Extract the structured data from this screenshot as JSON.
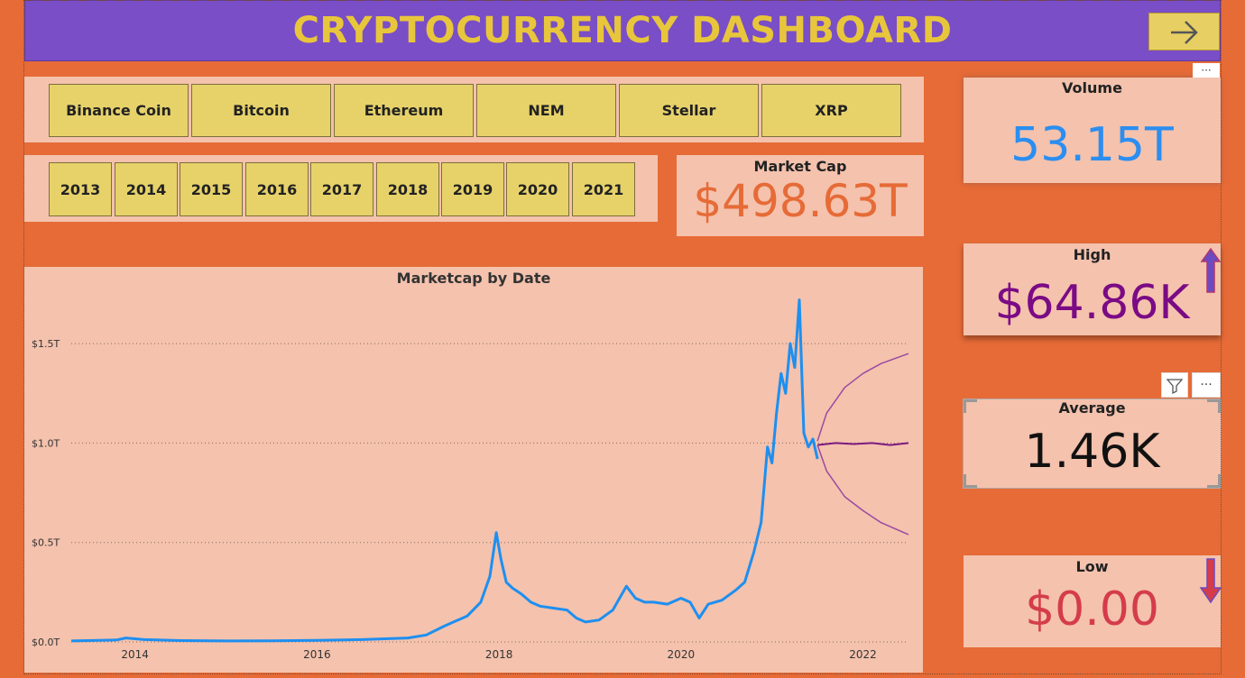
{
  "header": {
    "title": "CRYPTOCURRENCY DASHBOARD",
    "next_icon": "arrow-right-icon"
  },
  "coins": [
    "Binance Coin",
    "Bitcoin",
    "Ethereum",
    "NEM",
    "Stellar",
    "XRP"
  ],
  "years": [
    "2013",
    "2014",
    "2015",
    "2016",
    "2017",
    "2018",
    "2019",
    "2020",
    "2021"
  ],
  "cards": {
    "market_cap": {
      "label": "Market Cap",
      "value": "$498.63T",
      "color": "#e66b37"
    },
    "volume": {
      "label": "Volume",
      "value": "53.15T",
      "color": "#2b8ef0"
    },
    "high": {
      "label": "High",
      "value": "$64.86K",
      "color": "#7b0a85",
      "icon": "arrow-up-icon"
    },
    "average": {
      "label": "Average",
      "value": "1.46K",
      "color": "#111111"
    },
    "low": {
      "label": "Low",
      "value": "$0.00",
      "color": "#d43c4c",
      "icon": "arrow-down-icon"
    }
  },
  "visual_toolbar": {
    "filter_icon": "filter-icon",
    "more_icon": "more-options-icon",
    "more_label": "···"
  },
  "chart_data": {
    "type": "line",
    "title": "Marketcap by Date",
    "xlabel": "",
    "ylabel": "",
    "x_ticks": [
      "2014",
      "2016",
      "2018",
      "2020",
      "2022"
    ],
    "y_ticks": [
      "$0.0T",
      "$0.5T",
      "$1.0T",
      "$1.5T"
    ],
    "ylim": [
      0,
      1.75
    ],
    "xlim": [
      2013.3,
      2022.5
    ],
    "grid": "horizontal dotted",
    "series": [
      {
        "color": "#1e8ff0",
        "x": [
          2013.3,
          2013.8,
          2013.9,
          2014.1,
          2014.5,
          2015.0,
          2015.5,
          2016.0,
          2016.5,
          2017.0,
          2017.2,
          2017.4,
          2017.5,
          2017.65,
          2017.8,
          2017.9,
          2017.97,
          2018.02,
          2018.08,
          2018.15,
          2018.25,
          2018.35,
          2018.45,
          2018.6,
          2018.75,
          2018.85,
          2018.95,
          2019.1,
          2019.25,
          2019.4,
          2019.5,
          2019.6,
          2019.7,
          2019.85,
          2020.0,
          2020.1,
          2020.2,
          2020.3,
          2020.45,
          2020.6,
          2020.7,
          2020.8,
          2020.88,
          2020.95,
          2021.0,
          2021.05,
          2021.1,
          2021.15,
          2021.2,
          2021.25,
          2021.3,
          2021.35,
          2021.4,
          2021.45,
          2021.5
        ],
        "values": [
          0.005,
          0.01,
          0.02,
          0.012,
          0.007,
          0.005,
          0.006,
          0.008,
          0.012,
          0.02,
          0.035,
          0.08,
          0.1,
          0.13,
          0.2,
          0.33,
          0.55,
          0.42,
          0.3,
          0.27,
          0.24,
          0.2,
          0.18,
          0.17,
          0.16,
          0.12,
          0.1,
          0.11,
          0.16,
          0.28,
          0.22,
          0.2,
          0.2,
          0.19,
          0.22,
          0.2,
          0.12,
          0.19,
          0.21,
          0.26,
          0.3,
          0.45,
          0.6,
          0.98,
          0.9,
          1.15,
          1.35,
          1.25,
          1.5,
          1.38,
          1.72,
          1.05,
          0.98,
          1.02,
          0.92
        ]
      },
      {
        "color": "#7b1a80",
        "x": [
          2021.5,
          2021.7,
          2021.9,
          2022.1,
          2022.3,
          2022.5
        ],
        "values": [
          0.99,
          1.0,
          0.995,
          1.0,
          0.99,
          1.0
        ]
      },
      {
        "color": "#9a4aa2",
        "x": [
          2021.5,
          2021.6,
          2021.8,
          2022.0,
          2022.2,
          2022.5
        ],
        "values": [
          1.01,
          1.15,
          1.28,
          1.35,
          1.4,
          1.45
        ]
      },
      {
        "color": "#9a4aa2",
        "x": [
          2021.5,
          2021.6,
          2021.8,
          2022.0,
          2022.2,
          2022.5
        ],
        "values": [
          0.99,
          0.86,
          0.73,
          0.66,
          0.6,
          0.54
        ]
      }
    ]
  }
}
